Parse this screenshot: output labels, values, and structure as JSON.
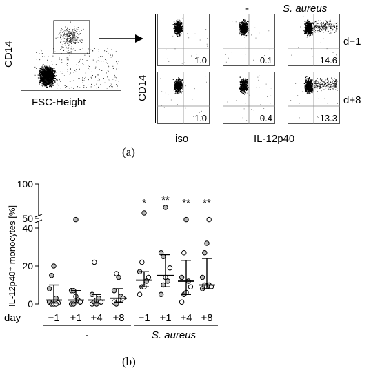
{
  "panel_a": {
    "caption": "(a)",
    "gating_plot": {
      "y_label": "CD14",
      "x_label": "FSC-Height"
    },
    "y_label": "CD14",
    "column_headers": [
      "-",
      "S. aureus"
    ],
    "row_labels": [
      "d−1",
      "d+8"
    ],
    "bottom_labels": [
      "iso",
      "IL-12p40"
    ],
    "quadrant_values": [
      [
        "1.0",
        "0.1",
        "14.6"
      ],
      [
        "1.0",
        "0.4",
        "13.3"
      ]
    ]
  },
  "panel_b": {
    "caption": "(b)",
    "day_label": "day",
    "group_labels": [
      "-",
      "S. aureus"
    ],
    "significance": [
      "*",
      "**",
      "**",
      "**"
    ]
  },
  "chart_data": {
    "type": "scatter",
    "title": "",
    "xlabel": "day",
    "ylabel": "IL-12p40⁺ monocytes [%]",
    "categories": [
      "−1",
      "+1",
      "+4",
      "+8",
      "−1",
      "+1",
      "+4",
      "+8"
    ],
    "groups": [
      "-",
      "-",
      "-",
      "-",
      "S. aureus",
      "S. aureus",
      "S. aureus",
      "S. aureus"
    ],
    "ylim": [
      0,
      100
    ],
    "y_axis_break": [
      40,
      50
    ],
    "yticks": [
      0,
      20,
      40,
      50,
      100
    ],
    "summary": [
      {
        "median": 2,
        "q1": 0.5,
        "q3": 10
      },
      {
        "median": 2,
        "q1": 0.5,
        "q3": 7
      },
      {
        "median": 2,
        "q1": 0.5,
        "q3": 5
      },
      {
        "median": 3,
        "q1": 1,
        "q3": 8
      },
      {
        "median": 12.5,
        "q1": 9,
        "q3": 17
      },
      {
        "median": 15,
        "q1": 9,
        "q3": 26
      },
      {
        "median": 12,
        "q1": 5,
        "q3": 23
      },
      {
        "median": 10,
        "q1": 8,
        "q3": 24
      }
    ],
    "points": [
      [
        1,
        0,
        0,
        3,
        0.5,
        8,
        15,
        20,
        0
      ],
      [
        0,
        0,
        4,
        2,
        1,
        7,
        7,
        48
      ],
      [
        0,
        1,
        2,
        3,
        1,
        5,
        22,
        0
      ],
      [
        1,
        0,
        2,
        4,
        3,
        7,
        16,
        14
      ],
      [
        5,
        9,
        9,
        12,
        14,
        17,
        22,
        58
      ],
      [
        5,
        10,
        14,
        12,
        19,
        27,
        25,
        66
      ],
      [
        1,
        5,
        6,
        12,
        9,
        14,
        27,
        48
      ],
      [
        8,
        10,
        9,
        10,
        9,
        14,
        27,
        32,
        48
      ]
    ]
  }
}
